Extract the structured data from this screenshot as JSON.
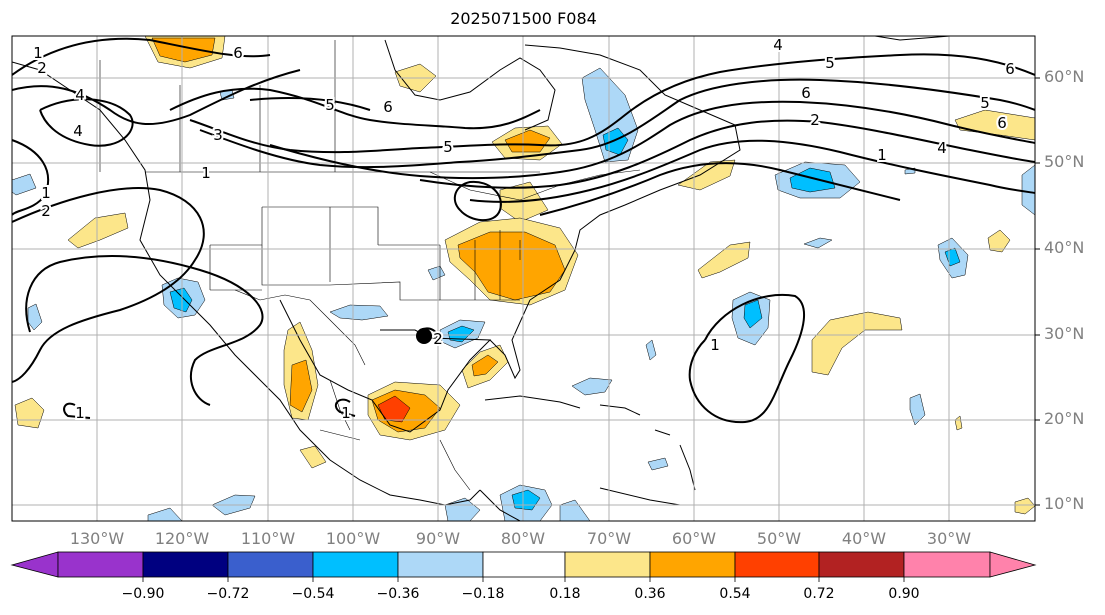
{
  "title": "2025071500 F084",
  "lat_labels": [
    "60°N",
    "50°N",
    "40°N",
    "30°N",
    "20°N",
    "10°N"
  ],
  "lon_labels": [
    "130°W",
    "120°W",
    "110°W",
    "100°W",
    "90°W",
    "80°W",
    "70°W",
    "60°W",
    "50°W",
    "40°W",
    "30°W"
  ],
  "colorbar": {
    "ticks": [
      "−0.90",
      "−0.72",
      "−0.54",
      "−0.36",
      "−0.18",
      "0.18",
      "0.36",
      "0.54",
      "0.72",
      "0.90"
    ],
    "colors": [
      "#9933cc",
      "#000080",
      "#3a5fcd",
      "#00bfff",
      "#add8f7",
      "#ffffff",
      "#fce68a",
      "#ffa500",
      "#ff4000",
      "#b22222",
      "#ff82ab"
    ]
  },
  "contour_labels": [
    "1",
    "2",
    "4",
    "6",
    "5",
    "3",
    "1",
    "6",
    "5",
    "4",
    "4",
    "5",
    "6",
    "2",
    "1",
    "6",
    "4",
    "5",
    "6",
    "1",
    "2",
    "1",
    "1",
    "2",
    "1"
  ],
  "colors": {
    "grid": "#b0b0b0",
    "contour": "#000000",
    "coast": "#000000"
  }
}
